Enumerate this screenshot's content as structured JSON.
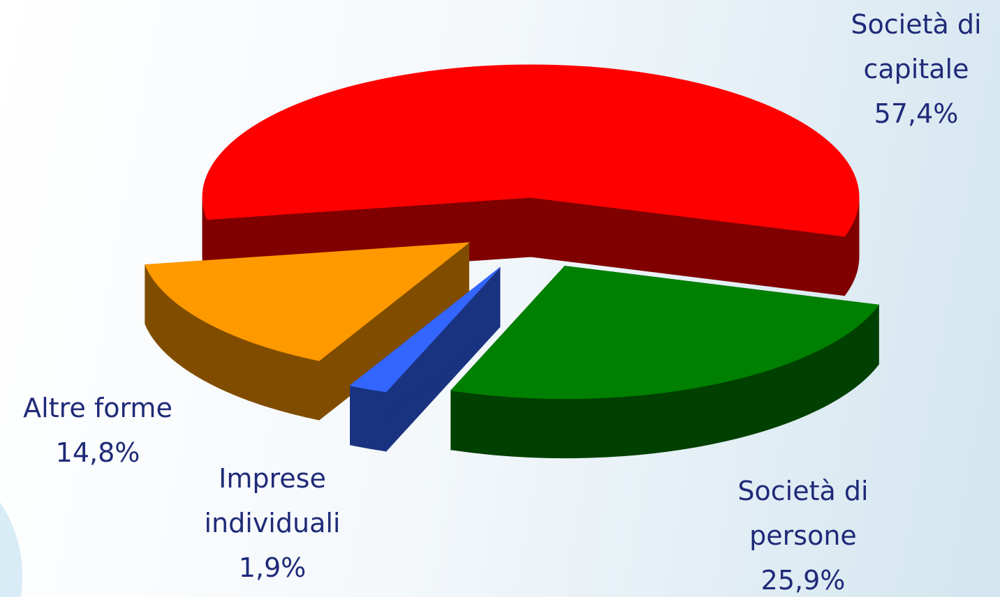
{
  "chart_data": {
    "type": "pie",
    "categories": [
      "Società di capitale",
      "Società di persone",
      "Imprese individuali",
      "Altre forme"
    ],
    "values": [
      57.4,
      25.9,
      1.9,
      14.8
    ],
    "value_labels": [
      "57,4%",
      "25,9%",
      "1,9%",
      "14,8%"
    ],
    "colors": [
      "#ff0000",
      "#008000",
      "#3366ff",
      "#ff9900"
    ]
  }
}
